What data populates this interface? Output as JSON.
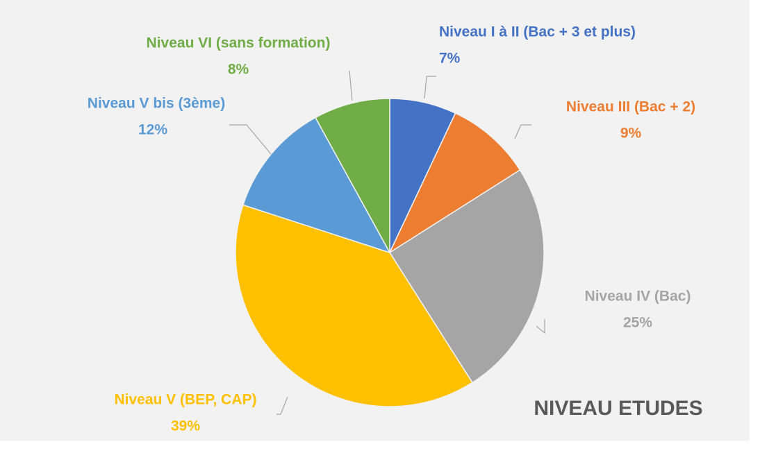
{
  "chart_data": {
    "type": "pie",
    "title": "NIVEAU ETUDES",
    "categories": [
      "Niveau I à II (Bac + 3 et plus)",
      "Niveau III (Bac + 2)",
      "Niveau IV (Bac)",
      "Niveau V (BEP, CAP)",
      "Niveau V bis (3ème)",
      "Niveau VI (sans formation)"
    ],
    "values": [
      7,
      9,
      25,
      39,
      12,
      8
    ],
    "value_labels": [
      "7%",
      "9%",
      "25%",
      "39%",
      "12%",
      "8%"
    ],
    "colors": [
      "#4472c4",
      "#ed7d31",
      "#a5a5a5",
      "#ffc000",
      "#5b9bd5",
      "#70ad47"
    ]
  }
}
